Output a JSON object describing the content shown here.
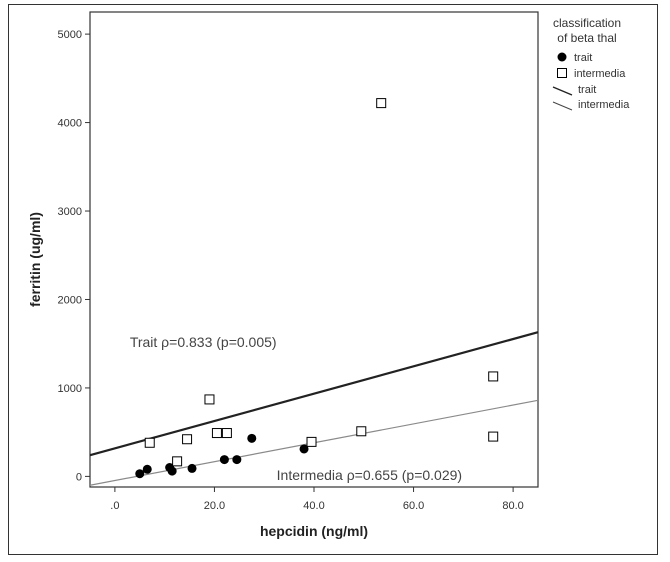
{
  "chart_data": {
    "type": "scatter",
    "title": "",
    "xlabel": "hepcidin (ng/ml)",
    "ylabel": "ferritin (ug/ml)",
    "xlim": [
      -5,
      85
    ],
    "ylim": [
      -120,
      5250
    ],
    "x_ticks": [
      0,
      20,
      40,
      60,
      80
    ],
    "x_tick_labels": [
      ".0",
      "20.0",
      "40.0",
      "60.0",
      "80.0"
    ],
    "y_ticks": [
      0,
      1000,
      2000,
      3000,
      4000,
      5000
    ],
    "y_tick_labels": [
      "0",
      "1000",
      "2000",
      "3000",
      "4000",
      "5000"
    ],
    "grid": false,
    "legend": {
      "title": "classification of beta thal",
      "position": "right",
      "items": [
        {
          "label": "trait",
          "kind": "marker-filled-circle"
        },
        {
          "label": "intermedia",
          "kind": "marker-open-square"
        },
        {
          "label": "trait",
          "kind": "line-thick"
        },
        {
          "label": "intermedia",
          "kind": "line-thin"
        }
      ]
    },
    "series": [
      {
        "name": "trait",
        "marker": "filled-circle",
        "color": "#000000",
        "points": [
          [
            5,
            30
          ],
          [
            6.5,
            80
          ],
          [
            11,
            100
          ],
          [
            11.5,
            60
          ],
          [
            15.5,
            90
          ],
          [
            22,
            190
          ],
          [
            24.5,
            190
          ],
          [
            27.5,
            430
          ],
          [
            38,
            310
          ]
        ],
        "fit": {
          "x": [
            -5,
            85
          ],
          "y": [
            240,
            1630
          ],
          "color": "#222222",
          "width": 2.2
        }
      },
      {
        "name": "intermedia",
        "marker": "open-square",
        "color": "#000000",
        "points": [
          [
            7,
            380
          ],
          [
            12.5,
            170
          ],
          [
            14.5,
            420
          ],
          [
            19,
            870
          ],
          [
            20.5,
            490
          ],
          [
            22.5,
            490
          ],
          [
            39.5,
            390
          ],
          [
            49.5,
            510
          ],
          [
            53.5,
            4220
          ],
          [
            76,
            1130
          ],
          [
            76,
            450
          ]
        ],
        "fit": {
          "x": [
            -5,
            85
          ],
          "y": [
            -100,
            860
          ],
          "color": "#8a8a8a",
          "width": 1.2
        }
      }
    ],
    "annotations": [
      {
        "text": "Trait ρ=0.833 (p=0.005)",
        "x": 3,
        "y": 1460
      },
      {
        "text": "Intermedia ρ=0.655 (p=0.029)",
        "x": 32.5,
        "y": -40
      }
    ]
  }
}
